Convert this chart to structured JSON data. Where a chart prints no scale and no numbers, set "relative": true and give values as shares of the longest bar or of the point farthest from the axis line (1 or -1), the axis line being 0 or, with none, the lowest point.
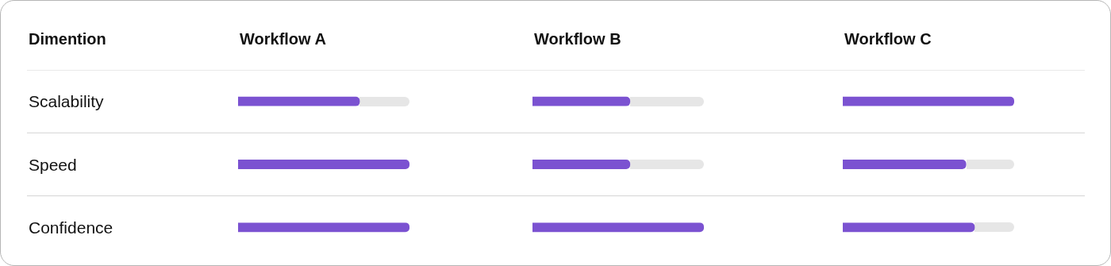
{
  "chart_data": [
    {
      "type": "bar",
      "orientation": "horizontal",
      "relative": true,
      "title": "Workflow A",
      "ylabel": "Dimention",
      "categories": [
        "Scalability",
        "Speed",
        "Confidence"
      ],
      "grid": "y",
      "series": [
        {
          "color": "#7b52d1",
          "values": [
            0.71,
            1,
            1
          ]
        }
      ]
    },
    {
      "type": "bar",
      "orientation": "horizontal",
      "relative": true,
      "title": "Workflow B",
      "categories": [
        null,
        null,
        null
      ],
      "grid": "y",
      "series": [
        {
          "color": "#7b52d1",
          "values": [
            0.57,
            0.57,
            1
          ]
        }
      ]
    },
    {
      "type": "bar",
      "orientation": "horizontal",
      "relative": true,
      "title": "Workflow C",
      "categories": [
        null,
        null,
        null
      ],
      "grid": "y",
      "series": [
        {
          "color": "#7b52d1",
          "values": [
            1,
            0.72,
            0.77
          ]
        }
      ]
    }
  ]
}
